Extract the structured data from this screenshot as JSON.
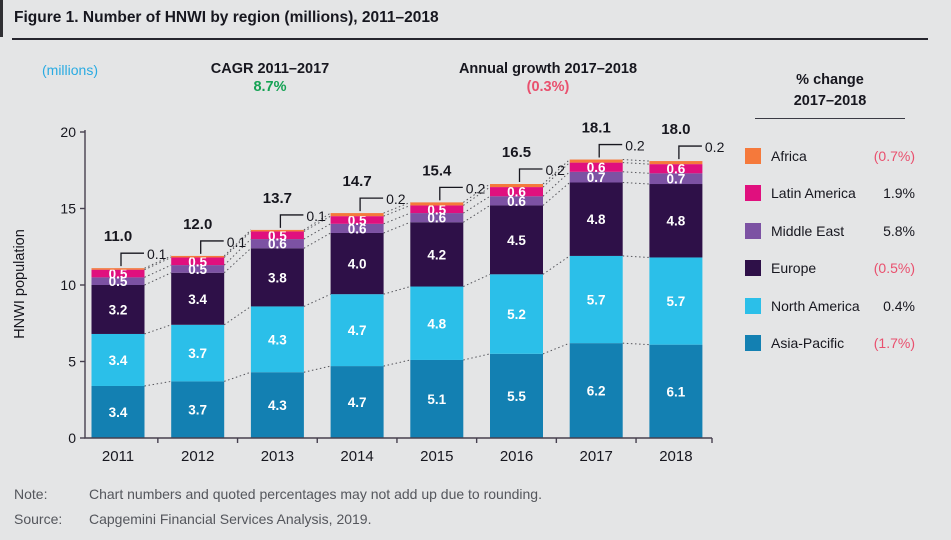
{
  "page": {
    "title": "Figure 1. Number of HNWI by region (millions), 2011–2018"
  },
  "header": {
    "units_label": "(millions)",
    "cagr_label": "CAGR 2011–2017",
    "cagr_value": "8.7%",
    "growth_label": "Annual growth 2017–2018",
    "growth_value": "(0.3%)"
  },
  "legend": {
    "header_line1": "% change",
    "header_line2": "2017–2018",
    "items": [
      {
        "label": "Africa",
        "value": "(0.7%)",
        "negative": true,
        "color": "#f5793b"
      },
      {
        "label": "Latin America",
        "value": "1.9%",
        "negative": false,
        "color": "#e0107e"
      },
      {
        "label": "Middle East",
        "value": "5.8%",
        "negative": false,
        "color": "#7c52a3"
      },
      {
        "label": "Europe",
        "value": "(0.5%)",
        "negative": true,
        "color": "#2e1048"
      },
      {
        "label": "North America",
        "value": "0.4%",
        "negative": false,
        "color": "#2bbfe9"
      },
      {
        "label": "Asia-Pacific",
        "value": "(1.7%)",
        "negative": true,
        "color": "#1380b2"
      }
    ]
  },
  "chart_data": {
    "type": "bar",
    "subtype": "stacked",
    "categories": [
      "2011",
      "2012",
      "2013",
      "2014",
      "2015",
      "2016",
      "2017",
      "2018"
    ],
    "series": [
      {
        "name": "Asia-Pacific",
        "color": "#1380b2",
        "label_inside": true,
        "values": [
          3.4,
          3.7,
          4.3,
          4.7,
          5.1,
          5.5,
          6.2,
          6.1
        ]
      },
      {
        "name": "North America",
        "color": "#2bbfe9",
        "label_inside": true,
        "values": [
          3.4,
          3.7,
          4.3,
          4.7,
          4.8,
          5.2,
          5.7,
          5.7
        ]
      },
      {
        "name": "Europe",
        "color": "#2e1048",
        "label_inside": true,
        "values": [
          3.2,
          3.4,
          3.8,
          4.0,
          4.2,
          4.5,
          4.8,
          4.8
        ]
      },
      {
        "name": "Middle East",
        "color": "#7c52a3",
        "label_inside": true,
        "values": [
          0.5,
          0.5,
          0.6,
          0.6,
          0.6,
          0.6,
          0.7,
          0.7
        ]
      },
      {
        "name": "Latin America",
        "color": "#e0107e",
        "label_inside": true,
        "values": [
          0.5,
          0.5,
          0.5,
          0.5,
          0.5,
          0.6,
          0.6,
          0.6
        ]
      },
      {
        "name": "Africa",
        "color": "#f5793b",
        "label_inside": false,
        "values": [
          0.1,
          0.1,
          0.1,
          0.2,
          0.2,
          0.2,
          0.2,
          0.2
        ]
      }
    ],
    "totals": [
      "11.0",
      "12.0",
      "13.7",
      "14.7",
      "15.4",
      "16.5",
      "18.1",
      "18.0"
    ],
    "ylabel": "HNWI population",
    "yticks": [
      0,
      5,
      10,
      15,
      20
    ],
    "ylim": [
      0,
      20
    ],
    "grid": false,
    "legend_position": "right"
  },
  "footer": {
    "note_label": "Note:",
    "note_text": "Chart numbers and quoted percentages may not add up due to rounding.",
    "source_label": "Source:",
    "source_text": "Capgemini Financial Services Analysis, 2019."
  }
}
